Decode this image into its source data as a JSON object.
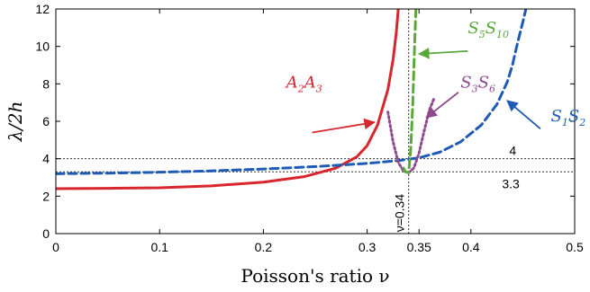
{
  "chart_data": {
    "type": "line",
    "xlabel": "Poisson's ratio ν",
    "ylabel": "λ/2h",
    "xlim": [
      0,
      0.5
    ],
    "ylim": [
      0,
      12
    ],
    "xticks": [
      "0",
      "0.1",
      "0.2",
      "0.3",
      "0.35",
      "0.4",
      "0.5"
    ],
    "xtick_values": [
      0,
      0.1,
      0.2,
      0.3,
      0.35,
      0.4,
      0.5
    ],
    "yticks": [
      "0",
      "2",
      "4",
      "6",
      "8",
      "10",
      "12"
    ],
    "ytick_values": [
      0,
      2,
      4,
      6,
      8,
      10,
      12
    ],
    "reference_lines": [
      {
        "orientation": "horizontal",
        "value": 4,
        "label": "4"
      },
      {
        "orientation": "horizontal",
        "value": 3.3,
        "label": "3.3"
      },
      {
        "orientation": "vertical",
        "value": 0.34,
        "label": "ν=0.34"
      }
    ],
    "series": [
      {
        "name": "A2A3",
        "label_main": [
          "A",
          "A"
        ],
        "label_sub": [
          "2",
          "3"
        ],
        "color": "#d7262e",
        "style": "solid",
        "x": [
          0,
          0.05,
          0.1,
          0.15,
          0.2,
          0.24,
          0.27,
          0.29,
          0.3,
          0.31,
          0.32,
          0.325,
          0.328,
          0.33
        ],
        "y": [
          2.4,
          2.42,
          2.45,
          2.55,
          2.75,
          3.05,
          3.5,
          4.1,
          4.7,
          5.8,
          7.7,
          9.3,
          10.7,
          12
        ]
      },
      {
        "name": "S1S2",
        "label_main": [
          "S",
          "S"
        ],
        "label_sub": [
          "1",
          "2"
        ],
        "color": "#1f5bb4",
        "style": "dashed",
        "x": [
          0,
          0.05,
          0.1,
          0.15,
          0.2,
          0.25,
          0.3,
          0.33,
          0.35,
          0.37,
          0.39,
          0.41,
          0.425,
          0.435,
          0.44,
          0.445,
          0.45,
          0.453
        ],
        "y": [
          3.2,
          3.23,
          3.28,
          3.35,
          3.45,
          3.58,
          3.75,
          3.9,
          4.05,
          4.35,
          4.9,
          5.8,
          6.9,
          8.1,
          9.0,
          10.2,
          11.3,
          12
        ]
      },
      {
        "name": "S3S6",
        "label_main": [
          "S",
          "S"
        ],
        "label_sub": [
          "3",
          "6"
        ],
        "color": "#8e4a8c",
        "style": "dotted",
        "x": [
          0.32,
          0.325,
          0.33,
          0.335,
          0.34,
          0.345,
          0.35,
          0.355,
          0.36,
          0.365
        ],
        "y": [
          6.5,
          4.9,
          3.8,
          3.35,
          3.25,
          3.5,
          4.3,
          5.5,
          6.6,
          7.3
        ]
      },
      {
        "name": "S5S10",
        "label_main": [
          "S",
          "S"
        ],
        "label_sub": [
          "5",
          "10"
        ],
        "color": "#5aa83c",
        "style": "dashed",
        "x": [
          0.335,
          0.337,
          0.34,
          0.342,
          0.344,
          0.345,
          0.346,
          0.347
        ],
        "y": [
          3.5,
          3.3,
          3.25,
          4.5,
          7.0,
          8.8,
          10.5,
          12
        ]
      }
    ],
    "annotations": [
      {
        "series": "A2A3",
        "arrow_from": [
          0.247,
          5.4
        ],
        "arrow_to": [
          0.307,
          5.95
        ],
        "text_at": [
          0.222,
          7.8
        ]
      },
      {
        "series": "S5S10",
        "arrow_from": [
          0.397,
          9.75
        ],
        "arrow_to": [
          0.35,
          9.6
        ],
        "text_at": [
          0.397,
          10.7
        ]
      },
      {
        "series": "S3S6",
        "arrow_from": [
          0.388,
          7.55
        ],
        "arrow_to": [
          0.357,
          6.2
        ],
        "text_at": [
          0.39,
          7.8
        ]
      },
      {
        "series": "S1S2",
        "arrow_from": [
          0.467,
          5.6
        ],
        "arrow_to": [
          0.435,
          7.1
        ],
        "text_at": [
          0.477,
          6.0
        ]
      }
    ]
  }
}
